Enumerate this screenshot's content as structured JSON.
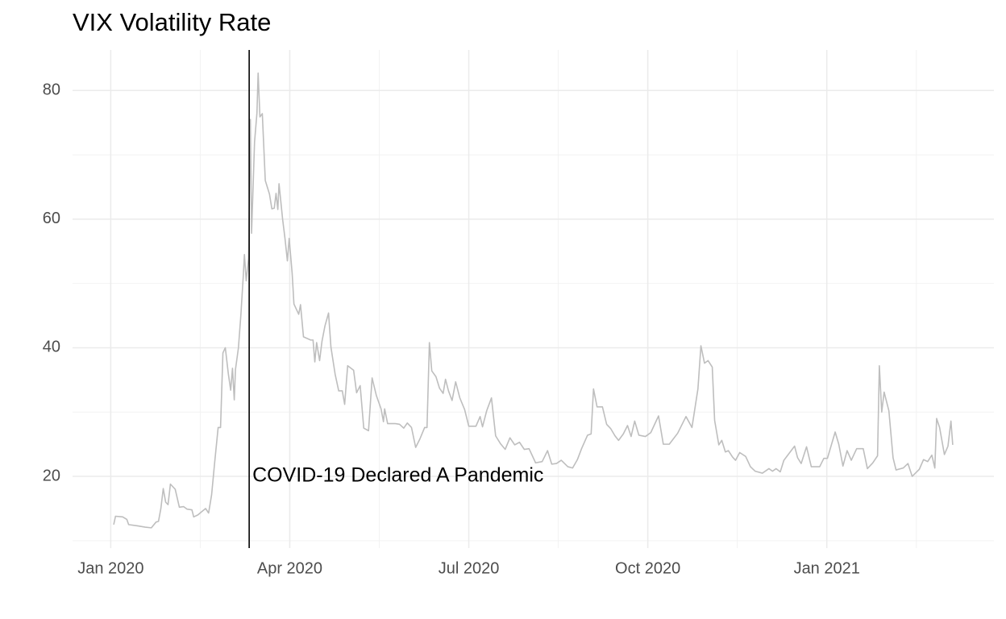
{
  "chart_data": {
    "type": "line",
    "title": "VIX Volatility Rate",
    "color": "#bebebe",
    "x": [
      0.05,
      0.08,
      0.2,
      0.27,
      0.3,
      0.45,
      0.58,
      0.68,
      0.76,
      0.8,
      0.84,
      0.88,
      0.92,
      0.96,
      1.0,
      1.08,
      1.15,
      1.22,
      1.28,
      1.36,
      1.39,
      1.46,
      1.51,
      1.59,
      1.64,
      1.69,
      1.74,
      1.8,
      1.84,
      1.88,
      1.92,
      1.97,
      2.01,
      2.04,
      2.07,
      2.09,
      2.14,
      2.18,
      2.22,
      2.24,
      2.27,
      2.31,
      2.34,
      2.36,
      2.41,
      2.45,
      2.47,
      2.5,
      2.54,
      2.59,
      2.66,
      2.7,
      2.74,
      2.77,
      2.8,
      2.82,
      2.88,
      2.92,
      2.96,
      2.99,
      3.04,
      3.07,
      3.15,
      3.18,
      3.23,
      3.35,
      3.39,
      3.42,
      3.45,
      3.5,
      3.54,
      3.59,
      3.65,
      3.69,
      3.76,
      3.82,
      3.88,
      3.92,
      3.97,
      4.07,
      4.12,
      4.18,
      4.24,
      4.32,
      4.38,
      4.45,
      4.53,
      4.57,
      4.59,
      4.64,
      4.77,
      4.84,
      4.91,
      4.97,
      5.04,
      5.11,
      5.18,
      5.26,
      5.3,
      5.34,
      5.38,
      5.45,
      5.51,
      5.57,
      5.61,
      5.66,
      5.72,
      5.78,
      5.85,
      5.93,
      6.0,
      6.12,
      6.19,
      6.23,
      6.3,
      6.38,
      6.45,
      6.53,
      6.61,
      6.69,
      6.77,
      6.85,
      6.93,
      7.01,
      7.12,
      7.23,
      7.32,
      7.39,
      7.47,
      7.55,
      7.66,
      7.74,
      7.82,
      7.89,
      7.99,
      8.05,
      8.09,
      8.15,
      8.24,
      8.31,
      8.38,
      8.45,
      8.51,
      8.59,
      8.66,
      8.72,
      8.78,
      8.85,
      8.96,
      9.05,
      9.18,
      9.26,
      9.36,
      9.5,
      9.64,
      9.74,
      9.84,
      9.89,
      9.95,
      10.01,
      10.08,
      10.12,
      10.19,
      10.24,
      10.3,
      10.35,
      10.42,
      10.47,
      10.54,
      10.64,
      10.72,
      10.8,
      10.92,
      11.03,
      11.09,
      11.15,
      11.22,
      11.28,
      11.46,
      11.51,
      11.57,
      11.66,
      11.74,
      11.88,
      11.95,
      12.01,
      12.14,
      12.2,
      12.27,
      12.34,
      12.41,
      12.5,
      12.61,
      12.68,
      12.77,
      12.85,
      12.88,
      12.92,
      12.96,
      13.04,
      13.11,
      13.16,
      13.28,
      13.36,
      13.43,
      13.55,
      13.62,
      13.69,
      13.76,
      13.81,
      13.84,
      13.89,
      13.97,
      14.03,
      14.08,
      14.11
    ],
    "values": [
      12.5,
      13.8,
      13.7,
      13.3,
      12.5,
      12.3,
      12.1,
      12.0,
      12.9,
      13.0,
      15.0,
      18.1,
      16.0,
      15.6,
      18.8,
      18.0,
      15.2,
      15.3,
      14.9,
      14.8,
      13.7,
      14.0,
      14.4,
      15.0,
      14.3,
      17.1,
      22,
      27.6,
      27.6,
      39.2,
      40,
      36,
      33.4,
      36.8,
      31.9,
      36.6,
      40,
      45,
      51,
      54.5,
      50.4,
      53.9,
      75.5,
      57.8,
      72,
      76.5,
      82.7,
      75.9,
      76.4,
      66,
      63.9,
      61.6,
      61.7,
      64,
      61.5,
      65.5,
      60,
      57,
      53.5,
      57,
      51.6,
      46.8,
      45.2,
      46.7,
      41.7,
      41.2,
      41.2,
      37.8,
      40.8,
      38,
      41,
      43.4,
      45.4,
      40.1,
      35.9,
      33.3,
      33.3,
      31.2,
      37.2,
      36.5,
      33,
      34.1,
      27.5,
      27.1,
      35.3,
      32.6,
      30.5,
      28.5,
      30.5,
      28.2,
      28.2,
      28.1,
      27.5,
      28.3,
      27.6,
      24.5,
      25.8,
      27.6,
      27.6,
      40.8,
      36.4,
      35.5,
      33.7,
      32.9,
      35.1,
      33.3,
      31.8,
      34.7,
      32.2,
      30.4,
      27.8,
      27.8,
      29.3,
      27.7,
      30.2,
      32.2,
      26.3,
      25.1,
      24.2,
      26,
      24.9,
      25.3,
      24.2,
      24.3,
      22.1,
      22.3,
      24,
      21.9,
      22,
      22.5,
      21.5,
      21.3,
      22.6,
      24.3,
      26.4,
      26.6,
      33.6,
      30.8,
      30.8,
      28.1,
      27.4,
      26.3,
      25.6,
      26.6,
      27.9,
      26.2,
      28.6,
      26.4,
      26.2,
      26.8,
      29.4,
      25,
      25,
      26.7,
      29.3,
      27.6,
      33.6,
      40.3,
      37.6,
      38,
      37,
      28.7,
      24.9,
      25.6,
      23.8,
      24,
      23,
      22.5,
      23.7,
      23.1,
      21.5,
      20.8,
      20.5,
      21.2,
      20.8,
      21.2,
      20.7,
      22.5,
      24.7,
      22.9,
      22,
      24.6,
      21.5,
      21.5,
      22.8,
      22.8,
      26.9,
      25,
      21.6,
      24,
      22.5,
      24.3,
      24.3,
      21.2,
      22.1,
      23.2,
      37.2,
      30,
      33.1,
      30.2,
      22.9,
      21,
      21.3,
      22,
      20,
      21.1,
      22.6,
      22.3,
      23.3,
      21.3,
      29,
      27.6,
      23.4,
      24.7,
      28.6,
      24.9
    ],
    "xlim": [
      -0.64,
      14.8
    ],
    "xticks": [
      {
        "value": 0,
        "label": "Jan 2020"
      },
      {
        "value": 3,
        "label": "Apr 2020"
      },
      {
        "value": 6,
        "label": "Jul 2020"
      },
      {
        "value": 9,
        "label": "Oct 2020"
      },
      {
        "value": 12,
        "label": "Jan 2021"
      }
    ],
    "x_minor_grid": [
      1.5,
      4.5,
      7.5,
      10.5,
      13.5
    ],
    "ylim": [
      8.85,
      86.3
    ],
    "yticks": [
      20,
      40,
      60,
      80
    ],
    "y_minor_grid": [
      10,
      30,
      50,
      70
    ],
    "grid": true,
    "annotation": {
      "text": "COVID-19 Declared A Pandemic",
      "x": 2.32,
      "y": 20
    }
  }
}
